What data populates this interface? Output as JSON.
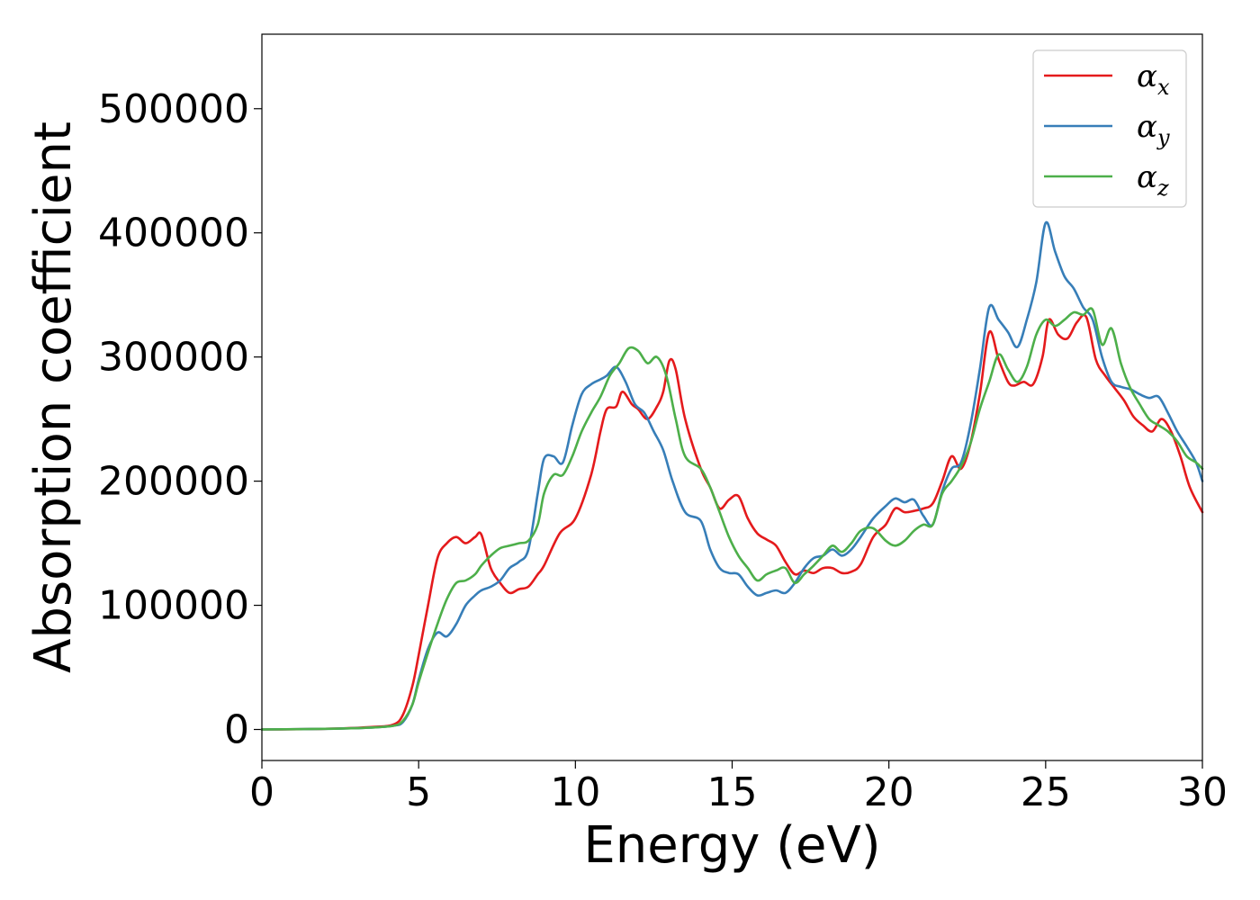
{
  "chart_data": {
    "type": "line",
    "title": "",
    "xlabel": "Energy (eV)",
    "ylabel": "Absorption coefficient",
    "xlim": [
      0,
      30
    ],
    "ylim": [
      -25000,
      560000
    ],
    "xticks": [
      0,
      5,
      10,
      15,
      20,
      25,
      30
    ],
    "xtick_labels": [
      "0",
      "5",
      "10",
      "15",
      "20",
      "25",
      "30"
    ],
    "yticks": [
      0,
      100000,
      200000,
      300000,
      400000,
      500000
    ],
    "ytick_labels": [
      "0",
      "100000",
      "200000",
      "300000",
      "400000",
      "500000"
    ],
    "grid": false,
    "legend_position": "top-right",
    "series": [
      {
        "name": "α_x",
        "label_base": "α",
        "label_sub": "x",
        "color": "#e41a1c",
        "x": [
          0,
          2,
          3.5,
          4.2,
          4.5,
          4.8,
          5.0,
          5.3,
          5.6,
          5.9,
          6.2,
          6.5,
          6.8,
          7.0,
          7.3,
          7.6,
          7.9,
          8.2,
          8.5,
          8.8,
          9.0,
          9.5,
          10.0,
          10.5,
          10.8,
          11.0,
          11.3,
          11.5,
          11.8,
          12.0,
          12.3,
          12.6,
          12.8,
          13.0,
          13.2,
          13.5,
          14.0,
          14.3,
          14.6,
          14.9,
          15.2,
          15.5,
          15.8,
          16.1,
          16.4,
          16.7,
          17.0,
          17.3,
          17.6,
          17.9,
          18.2,
          18.5,
          18.8,
          19.1,
          19.5,
          19.9,
          20.2,
          20.5,
          20.8,
          21.1,
          21.4,
          21.7,
          22.0,
          22.3,
          22.6,
          22.9,
          23.2,
          23.5,
          23.8,
          24.0,
          24.3,
          24.6,
          24.9,
          25.1,
          25.4,
          25.7,
          26.0,
          26.3,
          26.6,
          26.9,
          27.2,
          27.5,
          27.8,
          28.1,
          28.4,
          28.7,
          29.0,
          29.3,
          29.6,
          30.0
        ],
        "values": [
          0,
          500,
          2000,
          4000,
          12000,
          35000,
          60000,
          100000,
          138000,
          150000,
          155000,
          150000,
          155000,
          157000,
          130000,
          118000,
          110000,
          113000,
          115000,
          125000,
          132000,
          158000,
          170000,
          205000,
          240000,
          258000,
          260000,
          272000,
          262000,
          258000,
          250000,
          260000,
          272000,
          297000,
          290000,
          250000,
          210000,
          195000,
          178000,
          185000,
          188000,
          170000,
          158000,
          153000,
          148000,
          135000,
          125000,
          128000,
          126000,
          130000,
          130000,
          126000,
          127000,
          133000,
          155000,
          165000,
          178000,
          175000,
          176000,
          178000,
          182000,
          200000,
          220000,
          210000,
          230000,
          270000,
          320000,
          298000,
          280000,
          277000,
          280000,
          278000,
          300000,
          330000,
          318000,
          315000,
          328000,
          332000,
          298000,
          285000,
          275000,
          265000,
          252000,
          245000,
          240000,
          250000,
          240000,
          220000,
          195000,
          175000
        ]
      },
      {
        "name": "α_y",
        "label_base": "α",
        "label_sub": "y",
        "color": "#377eb8",
        "x": [
          0,
          2,
          3.5,
          4.2,
          4.5,
          4.8,
          5.0,
          5.3,
          5.6,
          5.9,
          6.2,
          6.5,
          6.8,
          7.0,
          7.3,
          7.6,
          7.9,
          8.2,
          8.5,
          8.8,
          9.0,
          9.3,
          9.6,
          9.9,
          10.2,
          10.5,
          10.8,
          11.0,
          11.3,
          11.6,
          11.9,
          12.2,
          12.5,
          12.8,
          13.1,
          13.5,
          14.0,
          14.3,
          14.6,
          14.9,
          15.2,
          15.5,
          15.8,
          16.1,
          16.4,
          16.7,
          17.0,
          17.3,
          17.6,
          17.9,
          18.2,
          18.5,
          18.8,
          19.1,
          19.5,
          19.9,
          20.2,
          20.5,
          20.8,
          21.1,
          21.4,
          21.7,
          22.0,
          22.3,
          22.6,
          22.9,
          23.2,
          23.5,
          23.8,
          24.1,
          24.4,
          24.7,
          25.0,
          25.3,
          25.6,
          25.9,
          26.2,
          26.5,
          26.8,
          27.1,
          27.4,
          27.7,
          28.0,
          28.3,
          28.6,
          28.9,
          29.2,
          29.5,
          29.8,
          30.0
        ],
        "values": [
          0,
          500,
          1500,
          3000,
          6000,
          20000,
          40000,
          65000,
          78000,
          75000,
          85000,
          100000,
          108000,
          112000,
          115000,
          120000,
          130000,
          135000,
          145000,
          190000,
          218000,
          220000,
          215000,
          245000,
          270000,
          278000,
          282000,
          285000,
          292000,
          280000,
          262000,
          255000,
          240000,
          225000,
          200000,
          175000,
          168000,
          145000,
          130000,
          126000,
          125000,
          115000,
          108000,
          110000,
          112000,
          110000,
          118000,
          130000,
          138000,
          140000,
          145000,
          140000,
          145000,
          155000,
          170000,
          180000,
          186000,
          183000,
          185000,
          172000,
          165000,
          192000,
          210000,
          215000,
          245000,
          290000,
          340000,
          330000,
          320000,
          308000,
          330000,
          360000,
          408000,
          385000,
          365000,
          355000,
          340000,
          330000,
          300000,
          280000,
          276000,
          274000,
          270000,
          267000,
          268000,
          255000,
          240000,
          228000,
          215000,
          200000
        ]
      },
      {
        "name": "α_z",
        "label_base": "α",
        "label_sub": "z",
        "color": "#4daf4a",
        "x": [
          0,
          2,
          3.5,
          4.2,
          4.5,
          4.8,
          5.0,
          5.3,
          5.6,
          5.9,
          6.2,
          6.5,
          6.8,
          7.0,
          7.3,
          7.6,
          7.9,
          8.2,
          8.5,
          8.8,
          9.0,
          9.3,
          9.6,
          9.9,
          10.2,
          10.5,
          10.8,
          11.1,
          11.4,
          11.7,
          12.0,
          12.3,
          12.6,
          12.9,
          13.2,
          13.5,
          14.0,
          14.3,
          14.6,
          14.9,
          15.2,
          15.5,
          15.8,
          16.1,
          16.4,
          16.7,
          17.0,
          17.3,
          17.6,
          17.9,
          18.2,
          18.5,
          18.8,
          19.1,
          19.5,
          19.9,
          20.2,
          20.5,
          20.8,
          21.1,
          21.4,
          21.7,
          22.0,
          22.3,
          22.6,
          22.9,
          23.2,
          23.5,
          23.8,
          24.1,
          24.4,
          24.7,
          25.0,
          25.3,
          25.6,
          25.9,
          26.2,
          26.5,
          26.8,
          27.1,
          27.4,
          27.7,
          28.0,
          28.3,
          28.6,
          28.9,
          29.2,
          29.5,
          29.8,
          30.0
        ],
        "values": [
          0,
          500,
          1500,
          3000,
          7000,
          20000,
          38000,
          62000,
          85000,
          105000,
          118000,
          120000,
          125000,
          132000,
          140000,
          146000,
          148000,
          150000,
          152000,
          165000,
          190000,
          205000,
          205000,
          220000,
          240000,
          255000,
          268000,
          285000,
          295000,
          307000,
          305000,
          295000,
          300000,
          285000,
          250000,
          220000,
          210000,
          195000,
          175000,
          155000,
          140000,
          130000,
          120000,
          125000,
          128000,
          130000,
          118000,
          125000,
          132000,
          140000,
          148000,
          143000,
          150000,
          160000,
          162000,
          152000,
          148000,
          152000,
          160000,
          165000,
          165000,
          190000,
          200000,
          212000,
          230000,
          258000,
          280000,
          302000,
          290000,
          280000,
          292000,
          318000,
          330000,
          325000,
          330000,
          336000,
          334000,
          338000,
          310000,
          323000,
          295000,
          275000,
          262000,
          250000,
          245000,
          240000,
          232000,
          220000,
          215000,
          210000
        ]
      }
    ]
  }
}
